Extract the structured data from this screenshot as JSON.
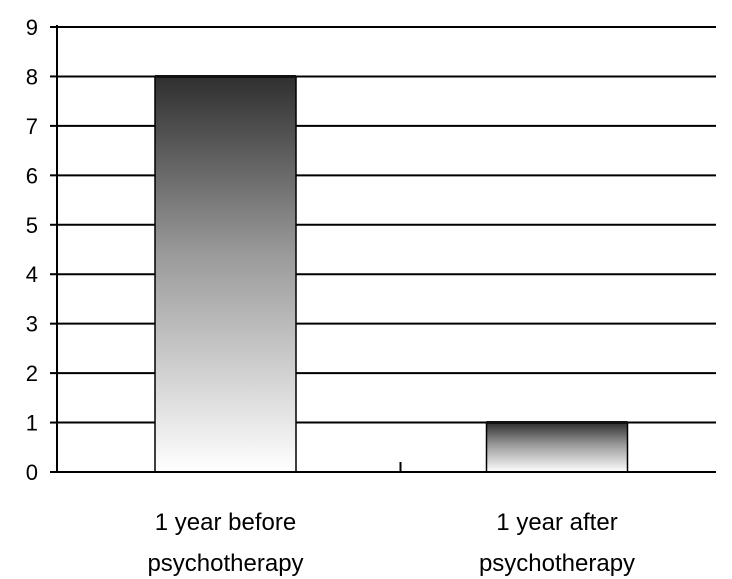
{
  "chart_data": {
    "type": "bar",
    "categories": [
      [
        "1 year before",
        "psychotherapy"
      ],
      [
        "1 year after",
        "psychotherapy"
      ]
    ],
    "values": [
      8,
      1
    ],
    "title": "",
    "xlabel": "",
    "ylabel": "",
    "ylim": [
      0,
      9
    ],
    "yticks": [
      0,
      1,
      2,
      3,
      4,
      5,
      6,
      7,
      8,
      9
    ],
    "grid": true,
    "bar_fill": "vertical gradient dark-to-white",
    "colors": {
      "bar_top": "#2f2f2f",
      "bar_bottom": "#ffffff",
      "axis": "#000000",
      "grid": "#000000"
    }
  }
}
